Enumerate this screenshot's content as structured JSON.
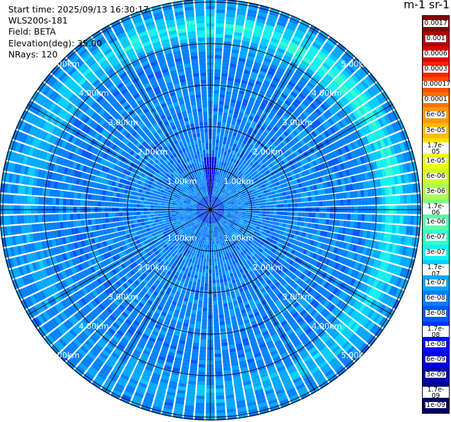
{
  "info": {
    "start_time": "Start time: 2025/09/13 16:30:17",
    "instrument": "WLS200s-181",
    "field": "Field: BETA",
    "elevation": "Elevation(deg): 35.00",
    "nrays": "NRays: 120"
  },
  "colorbar": {
    "title": "m-1 sr-1",
    "labels": [
      "0.0017",
      "0.001",
      "0.0006",
      "0.0003",
      "0.00017",
      "0.0001",
      "6e-05",
      "3e-05",
      "1.7e-05",
      "1e-05",
      "6e-06",
      "3e-06",
      "1.7e-06",
      "1e-06",
      "6e-07",
      "3e-07",
      "1.7e-07",
      "1e-07",
      "6e-08",
      "3e-08",
      "1.7e-08",
      "1e-08",
      "6e-09",
      "3e-09",
      "1.7e-09",
      "1e-09"
    ],
    "colors": [
      "#800000",
      "#b00000",
      "#e00000",
      "#ff2000",
      "#ff4a00",
      "#ff7000",
      "#ff9800",
      "#ffbc00",
      "#ffe000",
      "#f0ff10",
      "#ccff33",
      "#a8ff55",
      "#7fff7f",
      "#55ffa8",
      "#33ffcc",
      "#10f0f0",
      "#00ccff",
      "#00a8ff",
      "#0080ff",
      "#0058ff",
      "#0030ff",
      "#0008ff",
      "#0000dd",
      "#0000b0",
      "#000088",
      "#000060"
    ]
  },
  "range_labels": [
    "1.00km",
    "2.00km",
    "3.00km",
    "4.00km",
    "5.00km"
  ],
  "chart_data": {
    "type": "heatmap",
    "projection": "polar PPI",
    "field": "BETA",
    "elevation_deg": 35.0,
    "n_rays": 120,
    "range_rings_km": [
      1,
      2,
      3,
      4,
      5
    ],
    "max_range_km": 5.0,
    "background_level": "1e-08 to 1e-07 (blue)",
    "ring_feature": "enhanced backscatter ~3e-07 (cyan) near 4.3-4.6 km range",
    "near_field_feature": "low values ~1e-09 (dark blue) streak toward north within 1.2 km"
  }
}
